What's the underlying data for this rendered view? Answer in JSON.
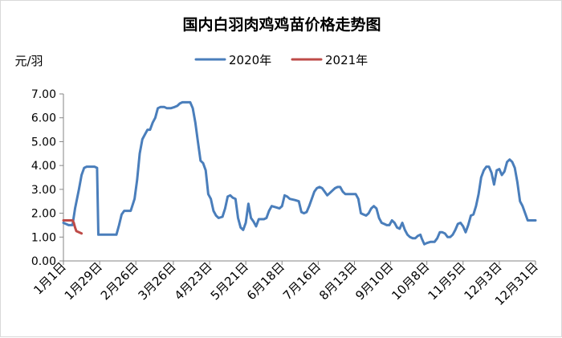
{
  "chart_data": {
    "type": "line",
    "title": "国内白羽肉鸡鸡苗价格走势图",
    "ylabel": "元/羽",
    "ylim": [
      0,
      7
    ],
    "yticks": [
      "0.00",
      "1.00",
      "2.00",
      "3.00",
      "4.00",
      "5.00",
      "6.00",
      "7.00"
    ],
    "xlim": [
      1,
      366
    ],
    "xticks": [
      {
        "day": 1,
        "label": "1月1日"
      },
      {
        "day": 29,
        "label": "1月29日"
      },
      {
        "day": 57,
        "label": "2月26日"
      },
      {
        "day": 86,
        "label": "3月26日"
      },
      {
        "day": 114,
        "label": "4月23日"
      },
      {
        "day": 142,
        "label": "5月21日"
      },
      {
        "day": 170,
        "label": "6月18日"
      },
      {
        "day": 198,
        "label": "7月16日"
      },
      {
        "day": 226,
        "label": "8月13日"
      },
      {
        "day": 254,
        "label": "9月10日"
      },
      {
        "day": 282,
        "label": "10月8日"
      },
      {
        "day": 310,
        "label": "11月5日"
      },
      {
        "day": 338,
        "label": "12月3日"
      },
      {
        "day": 366,
        "label": "12月31日"
      }
    ],
    "grid": false,
    "legend": "top-center",
    "series": [
      {
        "name": "2020年",
        "color": "#4a7ebb",
        "points": [
          [
            1,
            1.6
          ],
          [
            5,
            1.5
          ],
          [
            8,
            1.5
          ],
          [
            10,
            2.2
          ],
          [
            13,
            3.0
          ],
          [
            15,
            3.6
          ],
          [
            17,
            3.9
          ],
          [
            19,
            3.95
          ],
          [
            22,
            3.95
          ],
          [
            25,
            3.95
          ],
          [
            27,
            3.9
          ],
          [
            28,
            1.1
          ],
          [
            32,
            1.1
          ],
          [
            37,
            1.1
          ],
          [
            42,
            1.1
          ],
          [
            44,
            1.5
          ],
          [
            46,
            1.95
          ],
          [
            48,
            2.1
          ],
          [
            51,
            2.1
          ],
          [
            53,
            2.1
          ],
          [
            56,
            2.6
          ],
          [
            58,
            3.4
          ],
          [
            60,
            4.5
          ],
          [
            62,
            5.1
          ],
          [
            64,
            5.3
          ],
          [
            66,
            5.5
          ],
          [
            68,
            5.5
          ],
          [
            70,
            5.8
          ],
          [
            72,
            6.0
          ],
          [
            74,
            6.4
          ],
          [
            76,
            6.45
          ],
          [
            79,
            6.45
          ],
          [
            81,
            6.4
          ],
          [
            84,
            6.4
          ],
          [
            87,
            6.45
          ],
          [
            89,
            6.5
          ],
          [
            91,
            6.6
          ],
          [
            93,
            6.65
          ],
          [
            96,
            6.65
          ],
          [
            99,
            6.65
          ],
          [
            101,
            6.4
          ],
          [
            103,
            5.8
          ],
          [
            105,
            5.0
          ],
          [
            107,
            4.2
          ],
          [
            109,
            4.1
          ],
          [
            111,
            3.8
          ],
          [
            113,
            2.8
          ],
          [
            115,
            2.6
          ],
          [
            117,
            2.1
          ],
          [
            119,
            1.9
          ],
          [
            121,
            1.8
          ],
          [
            124,
            1.85
          ],
          [
            126,
            2.2
          ],
          [
            128,
            2.7
          ],
          [
            130,
            2.75
          ],
          [
            132,
            2.65
          ],
          [
            134,
            2.6
          ],
          [
            136,
            1.8
          ],
          [
            138,
            1.4
          ],
          [
            140,
            1.3
          ],
          [
            142,
            1.6
          ],
          [
            144,
            2.4
          ],
          [
            146,
            1.8
          ],
          [
            148,
            1.65
          ],
          [
            150,
            1.45
          ],
          [
            152,
            1.75
          ],
          [
            154,
            1.75
          ],
          [
            156,
            1.75
          ],
          [
            158,
            1.8
          ],
          [
            160,
            2.1
          ],
          [
            162,
            2.3
          ],
          [
            165,
            2.25
          ],
          [
            168,
            2.2
          ],
          [
            170,
            2.3
          ],
          [
            172,
            2.75
          ],
          [
            174,
            2.7
          ],
          [
            176,
            2.6
          ],
          [
            180,
            2.55
          ],
          [
            183,
            2.5
          ],
          [
            185,
            2.05
          ],
          [
            187,
            2.0
          ],
          [
            189,
            2.05
          ],
          [
            191,
            2.3
          ],
          [
            193,
            2.6
          ],
          [
            195,
            2.9
          ],
          [
            197,
            3.05
          ],
          [
            199,
            3.1
          ],
          [
            201,
            3.05
          ],
          [
            203,
            2.9
          ],
          [
            205,
            2.75
          ],
          [
            207,
            2.85
          ],
          [
            209,
            2.95
          ],
          [
            211,
            3.05
          ],
          [
            213,
            3.1
          ],
          [
            215,
            3.1
          ],
          [
            217,
            2.9
          ],
          [
            219,
            2.8
          ],
          [
            222,
            2.8
          ],
          [
            225,
            2.8
          ],
          [
            227,
            2.8
          ],
          [
            229,
            2.6
          ],
          [
            231,
            2.0
          ],
          [
            233,
            1.95
          ],
          [
            235,
            1.9
          ],
          [
            237,
            2.0
          ],
          [
            239,
            2.2
          ],
          [
            241,
            2.3
          ],
          [
            243,
            2.2
          ],
          [
            245,
            1.8
          ],
          [
            247,
            1.6
          ],
          [
            249,
            1.55
          ],
          [
            251,
            1.5
          ],
          [
            253,
            1.5
          ],
          [
            255,
            1.7
          ],
          [
            257,
            1.6
          ],
          [
            259,
            1.4
          ],
          [
            261,
            1.35
          ],
          [
            263,
            1.6
          ],
          [
            265,
            1.3
          ],
          [
            267,
            1.1
          ],
          [
            269,
            1.0
          ],
          [
            271,
            0.95
          ],
          [
            273,
            0.95
          ],
          [
            275,
            1.05
          ],
          [
            277,
            1.1
          ],
          [
            278,
            0.95
          ],
          [
            280,
            0.7
          ],
          [
            282,
            0.75
          ],
          [
            285,
            0.8
          ],
          [
            288,
            0.8
          ],
          [
            290,
            0.95
          ],
          [
            292,
            1.2
          ],
          [
            294,
            1.2
          ],
          [
            296,
            1.15
          ],
          [
            298,
            1.0
          ],
          [
            300,
            1.0
          ],
          [
            302,
            1.1
          ],
          [
            304,
            1.3
          ],
          [
            306,
            1.55
          ],
          [
            308,
            1.6
          ],
          [
            310,
            1.45
          ],
          [
            312,
            1.2
          ],
          [
            314,
            1.5
          ],
          [
            316,
            1.9
          ],
          [
            318,
            1.95
          ],
          [
            320,
            2.3
          ],
          [
            322,
            2.8
          ],
          [
            324,
            3.5
          ],
          [
            326,
            3.8
          ],
          [
            328,
            3.95
          ],
          [
            330,
            3.95
          ],
          [
            332,
            3.7
          ],
          [
            334,
            3.2
          ],
          [
            336,
            3.8
          ],
          [
            338,
            3.85
          ],
          [
            340,
            3.6
          ],
          [
            342,
            3.75
          ],
          [
            344,
            4.15
          ],
          [
            346,
            4.25
          ],
          [
            348,
            4.15
          ],
          [
            350,
            3.9
          ],
          [
            352,
            3.3
          ],
          [
            354,
            2.5
          ],
          [
            356,
            2.3
          ],
          [
            358,
            2.0
          ],
          [
            360,
            1.7
          ],
          [
            363,
            1.7
          ],
          [
            366,
            1.7
          ]
        ]
      },
      {
        "name": "2021年",
        "color": "#be4b48",
        "points": [
          [
            1,
            1.7
          ],
          [
            4,
            1.7
          ],
          [
            8,
            1.7
          ],
          [
            9,
            1.6
          ],
          [
            10,
            1.4
          ],
          [
            11,
            1.25
          ],
          [
            13,
            1.2
          ],
          [
            15,
            1.15
          ]
        ]
      }
    ]
  }
}
